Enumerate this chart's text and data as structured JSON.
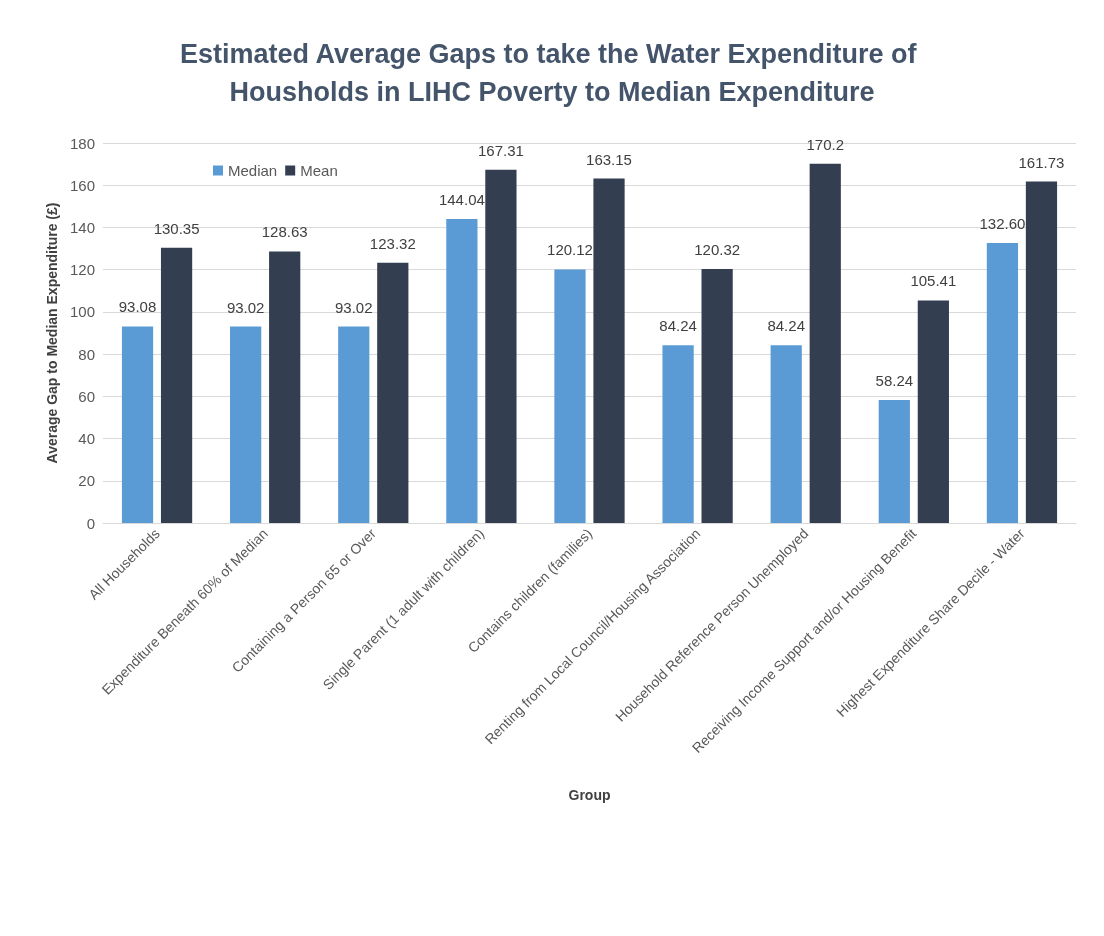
{
  "chart_data": {
    "type": "bar",
    "title": "Estimated Average Gaps to take the Water Expenditure of Housholds in LIHC Poverty to Median Expenditure",
    "xlabel": "Group",
    "ylabel": "Average Gap to Median Expenditure (£)",
    "categories": [
      "All Households",
      "Expenditure Beneath 60% of Median",
      "Containing a Person 65 or Over",
      "Single Parent (1 adult with children)",
      "Contains children (families)",
      "Renting from Local Council/Housing Association",
      "Household Reference Person Unemployed",
      "Receiving Income Support and/or Housing Benefit",
      "Highest Expenditure Share Decile - Water"
    ],
    "series": [
      {
        "name": "Median",
        "color": "#5b9bd5",
        "values": [
          93.08,
          93.02,
          93.02,
          144.04,
          120.12,
          84.24,
          84.24,
          58.24,
          132.6
        ],
        "value_labels": [
          "93.08",
          "93.02",
          "93.02",
          "144.04",
          "120.12",
          "84.24",
          "84.24",
          "58.24",
          "132.60"
        ]
      },
      {
        "name": "Mean",
        "color": "#333f50",
        "values": [
          130.35,
          128.63,
          123.32,
          167.31,
          163.15,
          120.32,
          170.2,
          105.41,
          161.73
        ],
        "value_labels": [
          "130.35",
          "128.63",
          "123.32",
          "167.31",
          "163.15",
          "120.32",
          "170.2",
          "105.41",
          "161.73"
        ]
      }
    ],
    "ylim": [
      0,
      180
    ],
    "yticks": [
      0,
      20,
      40,
      60,
      80,
      100,
      120,
      140,
      160,
      180
    ],
    "grid": "y",
    "legend": "top left"
  }
}
